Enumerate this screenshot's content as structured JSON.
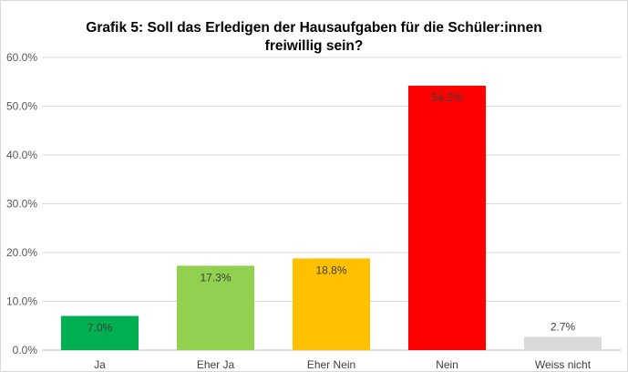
{
  "chart_data": {
    "type": "bar",
    "title_line1": "Grafik 5: Soll das Erledigen der Hausaufgaben für die Schüler:innen",
    "title_line2": "freiwillig sein?",
    "categories": [
      "Ja",
      "Eher Ja",
      "Eher Nein",
      "Nein",
      "Weiss nicht"
    ],
    "values": [
      7.0,
      17.3,
      18.8,
      54.2,
      2.7
    ],
    "data_labels": [
      "7.0%",
      "17.3%",
      "18.8%",
      "54.2%",
      "2.7%"
    ],
    "colors": [
      "#00b050",
      "#92d050",
      "#ffc000",
      "#ff0000",
      "#d9d9d9"
    ],
    "ylim": [
      0,
      60
    ],
    "yticks": [
      0,
      10,
      20,
      30,
      40,
      50,
      60
    ],
    "ytick_labels": [
      "0.0%",
      "10.0%",
      "20.0%",
      "30.0%",
      "40.0%",
      "50.0%",
      "60.0%"
    ],
    "grid": true,
    "gridline_color": "#d9d9d9",
    "legend": false
  }
}
